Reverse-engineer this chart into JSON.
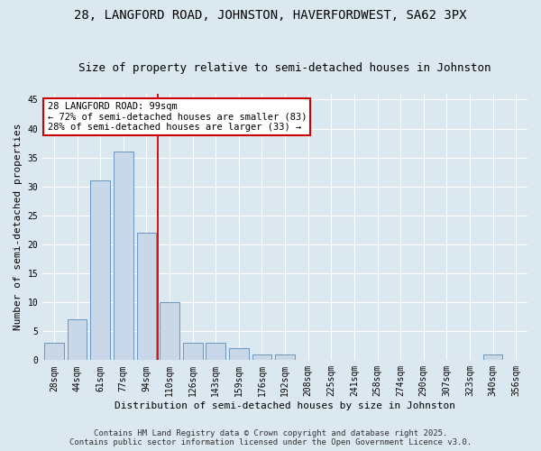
{
  "title_line1": "28, LANGFORD ROAD, JOHNSTON, HAVERFORDWEST, SA62 3PX",
  "title_line2": "Size of property relative to semi-detached houses in Johnston",
  "xlabel": "Distribution of semi-detached houses by size in Johnston",
  "ylabel": "Number of semi-detached properties",
  "categories": [
    "28sqm",
    "44sqm",
    "61sqm",
    "77sqm",
    "94sqm",
    "110sqm",
    "126sqm",
    "143sqm",
    "159sqm",
    "176sqm",
    "192sqm",
    "208sqm",
    "225sqm",
    "241sqm",
    "258sqm",
    "274sqm",
    "290sqm",
    "307sqm",
    "323sqm",
    "340sqm",
    "356sqm"
  ],
  "values": [
    3,
    7,
    31,
    36,
    22,
    10,
    3,
    3,
    2,
    1,
    1,
    0,
    0,
    0,
    0,
    0,
    0,
    0,
    0,
    1,
    0
  ],
  "bar_color": "#c8d8e8",
  "bar_edgecolor": "#5a8ab5",
  "vline_x": 4.5,
  "annotation_text": "28 LANGFORD ROAD: 99sqm\n← 72% of semi-detached houses are smaller (83)\n28% of semi-detached houses are larger (33) →",
  "annotation_box_color": "#ffffff",
  "annotation_box_edgecolor": "#cc0000",
  "footnote_line1": "Contains HM Land Registry data © Crown copyright and database right 2025.",
  "footnote_line2": "Contains public sector information licensed under the Open Government Licence v3.0.",
  "ylim": [
    0,
    46
  ],
  "yticks": [
    0,
    5,
    10,
    15,
    20,
    25,
    30,
    35,
    40,
    45
  ],
  "bg_color": "#dce8f0",
  "grid_color": "#ffffff",
  "title_fontsize": 10,
  "subtitle_fontsize": 9,
  "axis_label_fontsize": 8,
  "tick_fontsize": 7,
  "annotation_fontsize": 7.5,
  "footnote_fontsize": 6.5
}
